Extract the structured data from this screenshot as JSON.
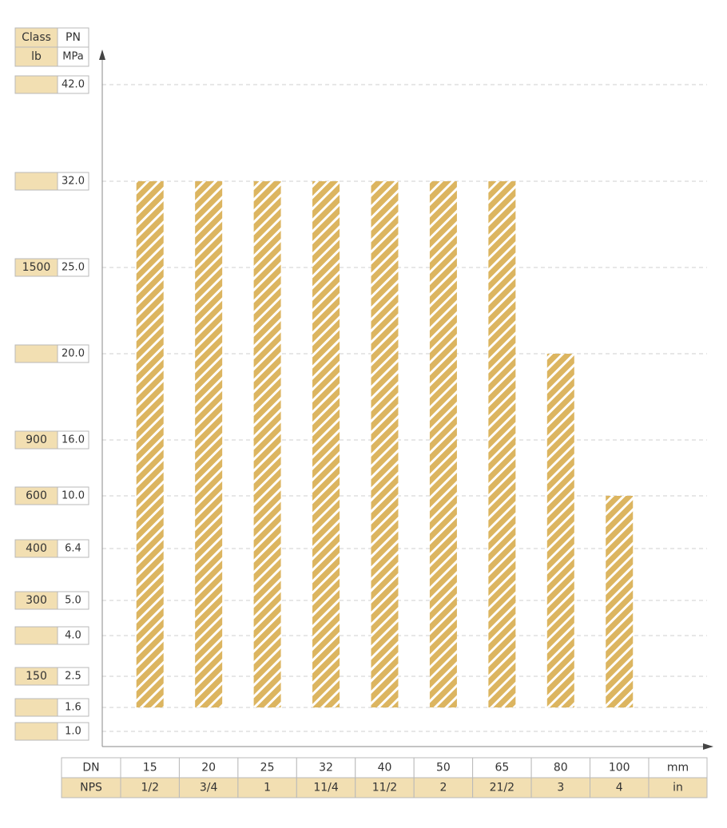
{
  "colors": {
    "bar_fill": "#dcb560",
    "bar_stripe": "#ffffff",
    "label_fill": "#f2dfb2",
    "axis": "#8a8a8a",
    "grid": "#cfcfcf",
    "text": "#333333"
  },
  "header": {
    "class_label": "Class",
    "pn_label": "PN",
    "lb_label": "lb",
    "mpa_label": "MPa"
  },
  "footer": {
    "dn_label": "DN",
    "nps_label": "NPS",
    "mm_label": "mm",
    "in_label": "in"
  },
  "chart_data": {
    "type": "bar",
    "categories": [
      "15",
      "20",
      "25",
      "32",
      "40",
      "50",
      "65",
      "80",
      "100"
    ],
    "nps": [
      "1/2",
      "3/4",
      "1",
      "11/4",
      "11/2",
      "2",
      "21/2",
      "3",
      "4"
    ],
    "values": [
      32.0,
      32.0,
      32.0,
      32.0,
      32.0,
      32.0,
      32.0,
      20.0,
      10.0
    ],
    "baseline": 1.6,
    "pressure_levels": [
      {
        "pn": "42.0",
        "class": ""
      },
      {
        "pn": "32.0",
        "class": ""
      },
      {
        "pn": "25.0",
        "class": "1500"
      },
      {
        "pn": "20.0",
        "class": ""
      },
      {
        "pn": "16.0",
        "class": "900"
      },
      {
        "pn": "10.0",
        "class": "600"
      },
      {
        "pn": "6.4",
        "class": "400"
      },
      {
        "pn": "5.0",
        "class": "300"
      },
      {
        "pn": "4.0",
        "class": ""
      },
      {
        "pn": "2.5",
        "class": "150"
      },
      {
        "pn": "1.6",
        "class": ""
      },
      {
        "pn": "1.0",
        "class": ""
      }
    ],
    "grid": true
  }
}
